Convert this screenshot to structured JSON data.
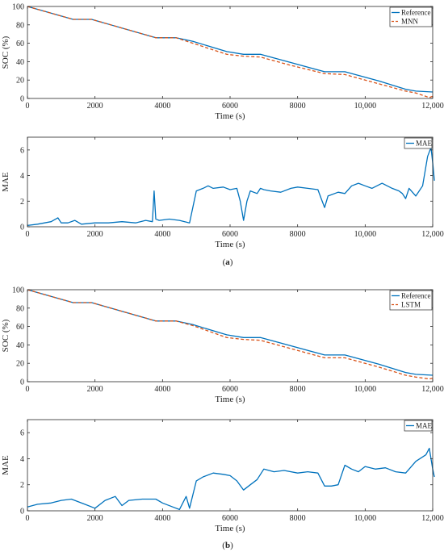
{
  "colors": {
    "reference": "#0072BD",
    "prediction": "#D95319",
    "mae": "#0072BD"
  },
  "panels": [
    {
      "label_prefix": "(",
      "label_letter": "a",
      "label_suffix": ")",
      "model": "MNN",
      "soc_plot": {
        "type": "line",
        "xlabel": "Time (s)",
        "ylabel": "SOC (%)",
        "xlim": [
          0,
          12000
        ],
        "ylim": [
          0,
          100
        ],
        "xticks": [
          0,
          2000,
          4000,
          6000,
          8000,
          10000,
          12000
        ],
        "xtick_labels": [
          "0",
          "2000",
          "4000",
          "6000",
          "8000",
          "10,000",
          "12,000"
        ],
        "yticks": [
          0,
          20,
          40,
          60,
          80,
          100
        ],
        "ytick_labels": [
          "0",
          "20",
          "40",
          "60",
          "80",
          "100"
        ],
        "legend_position": "top-right",
        "series": [
          {
            "name": "Reference",
            "style": "solid",
            "color_key": "reference",
            "x": [
              0,
              1350,
              1900,
              3800,
              4400,
              4900,
              5900,
              6400,
              6900,
              7800,
              8800,
              9400,
              10400,
              11200,
              11500,
              12000
            ],
            "y": [
              100,
              86,
              86,
              66,
              66,
              62,
              51,
              48,
              48,
              39,
              29,
              29,
              19,
              10,
              8,
              7
            ]
          },
          {
            "name": "MNN",
            "style": "dashed",
            "color_key": "prediction",
            "x": [
              0,
              1350,
              1900,
              3800,
              4400,
              4900,
              5900,
              6400,
              6900,
              7800,
              8800,
              9400,
              10400,
              11200,
              11500,
              11900,
              12050
            ],
            "y": [
              100,
              86,
              86,
              66,
              66,
              60,
              48,
              46,
              45,
              36,
              27,
              26,
              16,
              8,
              6,
              1,
              3
            ]
          }
        ]
      },
      "mae_plot": {
        "type": "line",
        "xlabel": "Time (s)",
        "ylabel": "MAE",
        "xlim": [
          0,
          12000
        ],
        "ylim": [
          0,
          7
        ],
        "xticks": [
          0,
          2000,
          4000,
          6000,
          8000,
          10000,
          12000
        ],
        "xtick_labels": [
          "0",
          "2000",
          "4000",
          "6000",
          "8000",
          "10,000",
          "12,000"
        ],
        "yticks": [
          0,
          2,
          4,
          6
        ],
        "ytick_labels": [
          "0",
          "2",
          "4",
          "6"
        ],
        "legend_position": "top-right",
        "series": [
          {
            "name": "MAE",
            "color_key": "mae",
            "x": [
              0,
              300,
              700,
              900,
              1000,
              1200,
              1400,
              1600,
              2000,
              2400,
              2800,
              3200,
              3500,
              3700,
              3750,
              3800,
              3900,
              4200,
              4500,
              4800,
              5000,
              5200,
              5350,
              5500,
              5800,
              6000,
              6200,
              6300,
              6400,
              6500,
              6600,
              6800,
              6900,
              7000,
              7200,
              7500,
              7800,
              8000,
              8300,
              8600,
              8700,
              8800,
              8900,
              9200,
              9400,
              9600,
              9800,
              10000,
              10200,
              10500,
              10800,
              11000,
              11100,
              11200,
              11300,
              11500,
              11700,
              11850,
              11950,
              12000,
              12050
            ],
            "y": [
              0.1,
              0.2,
              0.4,
              0.7,
              0.3,
              0.3,
              0.5,
              0.2,
              0.3,
              0.3,
              0.4,
              0.3,
              0.5,
              0.4,
              2.8,
              0.6,
              0.5,
              0.6,
              0.5,
              0.3,
              2.8,
              3.0,
              3.2,
              3.0,
              3.1,
              2.9,
              3.0,
              2.0,
              0.5,
              2.0,
              2.8,
              2.6,
              3.0,
              2.9,
              2.8,
              2.7,
              3.0,
              3.1,
              3.0,
              2.9,
              2.2,
              1.5,
              2.4,
              2.7,
              2.6,
              3.2,
              3.4,
              3.2,
              3.0,
              3.4,
              3.0,
              2.8,
              2.6,
              2.2,
              3.0,
              2.4,
              3.2,
              5.5,
              6.2,
              5.0,
              3.6
            ]
          }
        ]
      }
    },
    {
      "label_prefix": "(",
      "label_letter": "b",
      "label_suffix": ")",
      "model": "LSTM",
      "soc_plot": {
        "type": "line",
        "xlabel": "Time (s)",
        "ylabel": "SOC (%)",
        "xlim": [
          0,
          12000
        ],
        "ylim": [
          0,
          100
        ],
        "xticks": [
          0,
          2000,
          4000,
          6000,
          8000,
          10000,
          12000
        ],
        "xtick_labels": [
          "0",
          "2000",
          "4000",
          "6000",
          "8000",
          "10,000",
          "12,000"
        ],
        "yticks": [
          0,
          20,
          40,
          60,
          80,
          100
        ],
        "ytick_labels": [
          "0",
          "20",
          "40",
          "60",
          "80",
          "100"
        ],
        "legend_position": "top-right",
        "series": [
          {
            "name": "Reference",
            "style": "solid",
            "color_key": "reference",
            "x": [
              0,
              1350,
              1900,
              3800,
              4400,
              4900,
              5900,
              6400,
              6900,
              7800,
              8800,
              9400,
              10400,
              11200,
              11500,
              12000
            ],
            "y": [
              100,
              86,
              86,
              66,
              66,
              62,
              51,
              48,
              48,
              39,
              29,
              29,
              19,
              10,
              8,
              7
            ]
          },
          {
            "name": "LSTM",
            "style": "dashed",
            "color_key": "prediction",
            "x": [
              0,
              1350,
              1900,
              3800,
              4400,
              4900,
              5900,
              6400,
              6900,
              7800,
              8800,
              9400,
              10400,
              11200,
              11500,
              11900,
              12050
            ],
            "y": [
              100,
              86,
              86,
              66,
              66,
              61,
              48,
              46,
              45,
              36,
              26,
              26,
              16,
              7,
              5,
              3,
              4
            ]
          }
        ]
      },
      "mae_plot": {
        "type": "line",
        "xlabel": "Time (s)",
        "ylabel": "MAE",
        "xlim": [
          0,
          12000
        ],
        "ylim": [
          0,
          7
        ],
        "xticks": [
          0,
          2000,
          4000,
          6000,
          8000,
          10000,
          12000
        ],
        "xtick_labels": [
          "0",
          "2000",
          "4000",
          "6000",
          "8000",
          "10,000",
          "12,000"
        ],
        "yticks": [
          0,
          2,
          4,
          6
        ],
        "ytick_labels": [
          "0",
          "2",
          "4",
          "6"
        ],
        "legend_position": "top-right",
        "series": [
          {
            "name": "MAE",
            "color_key": "mae",
            "x": [
              0,
              300,
              700,
              1000,
              1300,
              1700,
              2000,
              2300,
              2600,
              2800,
              3000,
              3400,
              3800,
              4000,
              4300,
              4500,
              4700,
              4800,
              5000,
              5200,
              5500,
              5800,
              6000,
              6200,
              6400,
              6600,
              6800,
              7000,
              7300,
              7600,
              8000,
              8300,
              8600,
              8800,
              9000,
              9200,
              9400,
              9600,
              9800,
              10000,
              10300,
              10600,
              10900,
              11200,
              11500,
              11800,
              11900,
              12000,
              12050
            ],
            "y": [
              0.3,
              0.5,
              0.6,
              0.8,
              0.9,
              0.5,
              0.2,
              0.8,
              1.1,
              0.4,
              0.8,
              0.9,
              0.9,
              0.6,
              0.3,
              0.1,
              1.1,
              0.2,
              2.3,
              2.6,
              2.9,
              2.8,
              2.7,
              2.3,
              1.6,
              2.0,
              2.4,
              3.2,
              3.0,
              3.1,
              2.9,
              3.0,
              2.9,
              1.9,
              1.9,
              2.0,
              3.5,
              3.2,
              3.0,
              3.4,
              3.2,
              3.3,
              3.0,
              2.9,
              3.8,
              4.3,
              4.8,
              3.2,
              2.6
            ]
          }
        ]
      }
    }
  ]
}
